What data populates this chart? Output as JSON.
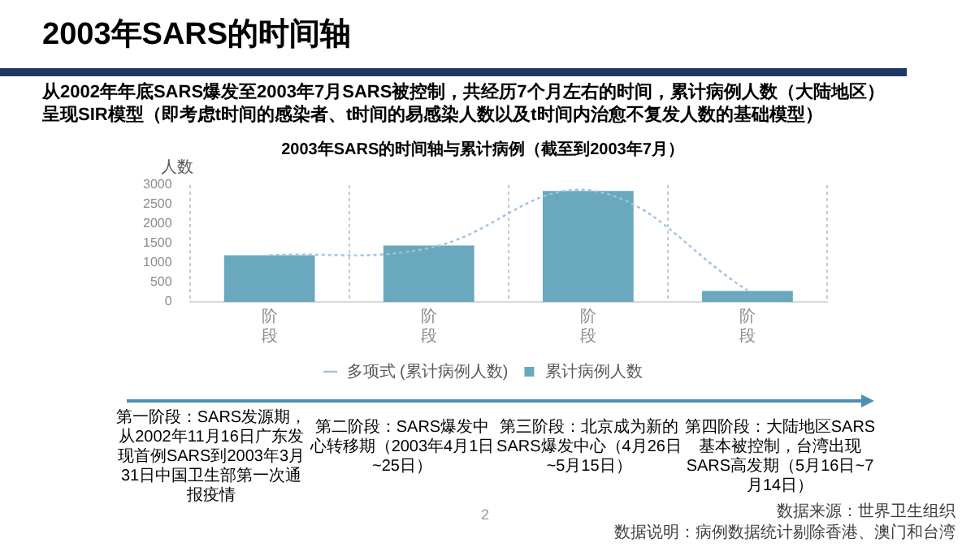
{
  "chart_data": {
    "type": "bar",
    "title": "2003年SARS的时间轴与累计病例（截至到2003年7月）",
    "ylabel": "人数",
    "categories": [
      "阶段",
      "阶段",
      "阶段",
      "阶段"
    ],
    "series": [
      {
        "name": "累计病例人数",
        "color": "#6aa8bd",
        "values": [
          1200,
          1450,
          2850,
          280
        ]
      },
      {
        "type": "line",
        "name": "多项式 (累计病例人数)",
        "color": "#9dc3e6",
        "line_style": "dotted",
        "values": [
          1200,
          1380,
          2870,
          300
        ]
      }
    ],
    "ylim": [
      0,
      3000
    ],
    "yticks": [
      0,
      500,
      1000,
      1500,
      2000,
      2500,
      3000
    ],
    "grid": "x",
    "legend": "bottom",
    "annotations": [
      "2003年SARS的时间轴",
      "从2002年年底SARS爆发至2003年7月SARS被控制，共经历7个月左右的时间，累计病例人数（大陆地区）呈现SIR模型（即考虑t时间的感染者、t时间的易感染人数以及t时间内治愈不复发人数的基础模型）",
      "第一阶段：SARS发源期，从2002年11月16日广东发现首例SARS到2003年3月31日中国卫生部第一次通报疫情",
      "第二阶段：SARS爆发中心转移期（2003年4月1日~25日）",
      "第三阶段：北京成为新的SARS爆发中心（4月26日~5月15日）",
      "第四阶段：大陆地区SARS基本被控制，台湾出现SARS高发期（5月16日~7月14日）",
      "数据来源：世界卫生组织",
      "数据说明：病例数据统计剔除香港、澳门和台湾",
      "2"
    ]
  }
}
